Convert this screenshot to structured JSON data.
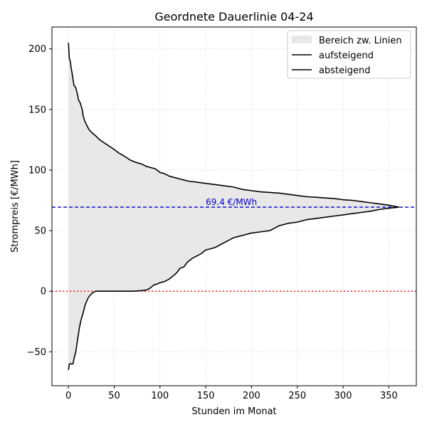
{
  "chart_data": {
    "type": "line",
    "title": "Geordnete Dauerlinie 04-24",
    "xlabel": "Stunden im Monat",
    "ylabel": "Strompreis [€/MWh]",
    "xlim": [
      -18,
      380
    ],
    "ylim": [
      -78,
      218
    ],
    "xticks": [
      0,
      50,
      100,
      150,
      200,
      250,
      300,
      350
    ],
    "yticks": [
      -50,
      0,
      50,
      100,
      150,
      200
    ],
    "xtick_labels": [
      "0",
      "50",
      "100",
      "150",
      "200",
      "250",
      "300",
      "350"
    ],
    "ytick_labels": [
      "−50",
      "0",
      "50",
      "100",
      "150",
      "200"
    ],
    "grid": true,
    "legend_position": "top-right",
    "reference_lines": [
      {
        "y": 69.4,
        "style": "dashed",
        "color": "#0000cc",
        "label": "69.4 €/MWh"
      },
      {
        "y": 0,
        "style": "dotted",
        "color": "#ff0000",
        "label": ""
      }
    ],
    "fill_between": {
      "label": "Bereich zw. Linien",
      "color": "#e8e8e8"
    },
    "series": [
      {
        "name": "aufsteigend",
        "color": "#000000",
        "points": [
          [
            0,
            -65
          ],
          [
            1,
            -60
          ],
          [
            5,
            -60
          ],
          [
            6,
            -56
          ],
          [
            8,
            -50
          ],
          [
            10,
            -40
          ],
          [
            12,
            -30
          ],
          [
            14,
            -23
          ],
          [
            16,
            -18
          ],
          [
            18,
            -12
          ],
          [
            20,
            -8
          ],
          [
            22,
            -5
          ],
          [
            24,
            -3
          ],
          [
            27,
            -1
          ],
          [
            30,
            0
          ],
          [
            35,
            0
          ],
          [
            50,
            0
          ],
          [
            70,
            0
          ],
          [
            80,
            0.5
          ],
          [
            85,
            1
          ],
          [
            88,
            2
          ],
          [
            90,
            3
          ],
          [
            93,
            5
          ],
          [
            97,
            6
          ],
          [
            100,
            7
          ],
          [
            105,
            8
          ],
          [
            110,
            10
          ],
          [
            115,
            13
          ],
          [
            118,
            15
          ],
          [
            122,
            19
          ],
          [
            126,
            20
          ],
          [
            128,
            22
          ],
          [
            130,
            24
          ],
          [
            135,
            27
          ],
          [
            140,
            29
          ],
          [
            145,
            31
          ],
          [
            150,
            34
          ],
          [
            155,
            35
          ],
          [
            160,
            36
          ],
          [
            165,
            38
          ],
          [
            170,
            40
          ],
          [
            175,
            42
          ],
          [
            180,
            44
          ],
          [
            185,
            45
          ],
          [
            190,
            46
          ],
          [
            195,
            47
          ],
          [
            200,
            48
          ],
          [
            210,
            49
          ],
          [
            220,
            50
          ],
          [
            225,
            52
          ],
          [
            230,
            54
          ],
          [
            240,
            56
          ],
          [
            250,
            57
          ],
          [
            260,
            59
          ],
          [
            270,
            60
          ],
          [
            280,
            61
          ],
          [
            290,
            62
          ],
          [
            300,
            63
          ],
          [
            310,
            64
          ],
          [
            320,
            65
          ],
          [
            330,
            66
          ],
          [
            340,
            67.5
          ],
          [
            350,
            68.5
          ],
          [
            361,
            69.4
          ]
        ]
      },
      {
        "name": "absteigend",
        "color": "#000000",
        "points": [
          [
            0,
            205
          ],
          [
            1,
            192
          ],
          [
            2,
            190
          ],
          [
            3,
            184
          ],
          [
            4,
            180
          ],
          [
            5,
            175
          ],
          [
            6,
            170
          ],
          [
            8,
            168
          ],
          [
            10,
            162
          ],
          [
            11,
            158
          ],
          [
            13,
            155
          ],
          [
            15,
            150
          ],
          [
            16,
            145
          ],
          [
            18,
            140
          ],
          [
            20,
            137
          ],
          [
            22,
            134
          ],
          [
            24,
            132
          ],
          [
            27,
            130
          ],
          [
            30,
            128
          ],
          [
            34,
            125
          ],
          [
            38,
            123
          ],
          [
            42,
            121
          ],
          [
            46,
            119
          ],
          [
            50,
            117
          ],
          [
            55,
            114
          ],
          [
            60,
            112
          ],
          [
            64,
            110
          ],
          [
            68,
            108
          ],
          [
            75,
            106
          ],
          [
            80,
            105
          ],
          [
            85,
            103
          ],
          [
            90,
            102
          ],
          [
            95,
            101
          ],
          [
            100,
            98
          ],
          [
            105,
            97
          ],
          [
            110,
            95
          ],
          [
            120,
            93
          ],
          [
            130,
            91
          ],
          [
            140,
            90
          ],
          [
            150,
            89
          ],
          [
            160,
            88
          ],
          [
            170,
            87
          ],
          [
            180,
            86
          ],
          [
            190,
            84
          ],
          [
            200,
            83
          ],
          [
            210,
            82
          ],
          [
            220,
            81.5
          ],
          [
            230,
            81
          ],
          [
            240,
            80
          ],
          [
            250,
            79
          ],
          [
            260,
            78
          ],
          [
            270,
            77.5
          ],
          [
            280,
            77
          ],
          [
            290,
            76.5
          ],
          [
            300,
            75.5
          ],
          [
            310,
            75
          ],
          [
            320,
            74
          ],
          [
            330,
            73
          ],
          [
            340,
            72
          ],
          [
            350,
            71
          ],
          [
            361,
            69.4
          ]
        ]
      }
    ]
  }
}
